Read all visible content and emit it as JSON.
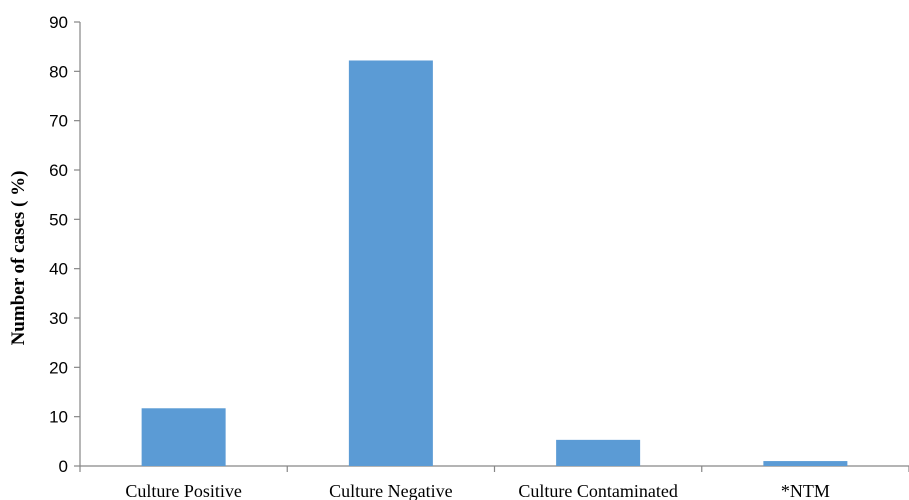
{
  "chart_data": {
    "type": "bar",
    "categories": [
      "Culture Positive",
      "Culture Negative",
      "Culture Contaminated",
      "*NTM"
    ],
    "values": [
      11.7,
      82.2,
      5.3,
      1.0
    ],
    "title": "",
    "xlabel": "",
    "ylabel": "Number of cases ( %)",
    "ylim": [
      0,
      90
    ],
    "yticks": [
      0,
      10,
      20,
      30,
      40,
      50,
      60,
      70,
      80,
      90
    ],
    "grid": false,
    "legend": "none",
    "bar_color": "#5b9bd5",
    "axis_color": "#868686"
  }
}
